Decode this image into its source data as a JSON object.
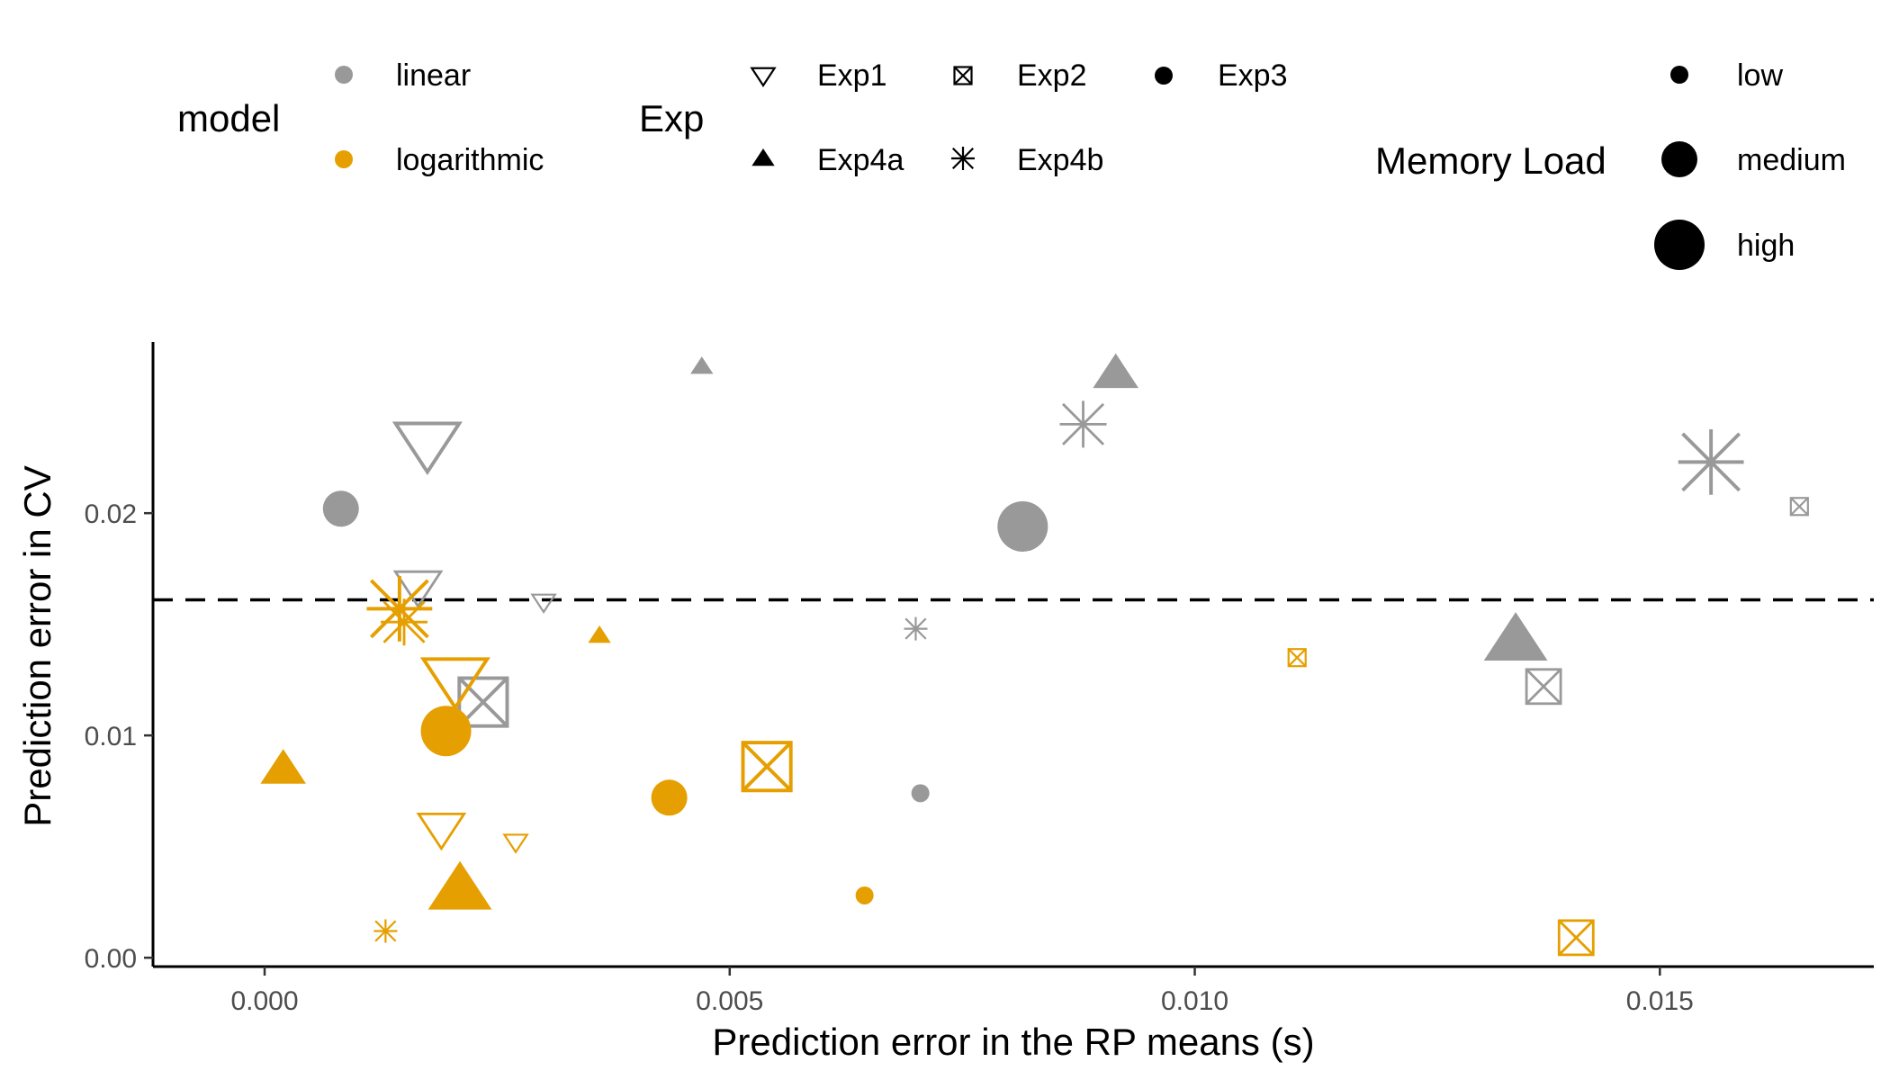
{
  "chart_data": {
    "type": "scatter",
    "xlabel": "Prediction error in the RP means (s)",
    "ylabel": "Prediction error in CV",
    "xlim": [
      -0.0012,
      0.0173
    ],
    "ylim": [
      -0.0004,
      0.0277
    ],
    "x_ticks": [
      "0.000",
      "0.005",
      "0.010",
      "0.015"
    ],
    "y_ticks": [
      "0.00",
      "0.01",
      "0.02"
    ],
    "reference_line": {
      "y": 0.0161,
      "style": "dashed"
    },
    "legends": {
      "model": {
        "title": "model",
        "items": [
          {
            "label": "linear",
            "color": "#999999"
          },
          {
            "label": "logarithmic",
            "color": "#E69F00"
          }
        ]
      },
      "exp": {
        "title": "Exp",
        "items": [
          {
            "label": "Exp1",
            "shape": "triangle-down-open"
          },
          {
            "label": "Exp2",
            "shape": "square-x-open"
          },
          {
            "label": "Exp3",
            "shape": "circle"
          },
          {
            "label": "Exp4a",
            "shape": "triangle-up"
          },
          {
            "label": "Exp4b",
            "shape": "asterisk"
          }
        ]
      },
      "memory_load": {
        "title": "Memory Load",
        "items": [
          {
            "label": "low"
          },
          {
            "label": "medium"
          },
          {
            "label": "high"
          }
        ]
      }
    },
    "series": [
      {
        "name": "linear",
        "color": "#999999",
        "points": [
          {
            "x": 0.00082,
            "y": 0.0202,
            "exp": "Exp3",
            "load": "medium"
          },
          {
            "x": 0.00815,
            "y": 0.0194,
            "exp": "Exp3",
            "load": "high"
          },
          {
            "x": 0.00705,
            "y": 0.0074,
            "exp": "Exp3",
            "load": "low"
          },
          {
            "x": 0.00175,
            "y": 0.0231,
            "exp": "Exp1",
            "load": "high"
          },
          {
            "x": 0.00165,
            "y": 0.0167,
            "exp": "Exp1",
            "load": "medium"
          },
          {
            "x": 0.003,
            "y": 0.016,
            "exp": "Exp1",
            "load": "low"
          },
          {
            "x": 0.0047,
            "y": 0.0266,
            "exp": "Exp4a",
            "load": "low"
          },
          {
            "x": 0.00915,
            "y": 0.0263,
            "exp": "Exp4a",
            "load": "medium"
          },
          {
            "x": 0.01345,
            "y": 0.0143,
            "exp": "Exp4a",
            "load": "high"
          },
          {
            "x": 0.0088,
            "y": 0.024,
            "exp": "Exp4b",
            "load": "medium"
          },
          {
            "x": 0.01555,
            "y": 0.0223,
            "exp": "Exp4b",
            "load": "high"
          },
          {
            "x": 0.007,
            "y": 0.0148,
            "exp": "Exp4b",
            "load": "low"
          },
          {
            "x": 0.00235,
            "y": 0.0115,
            "exp": "Exp2",
            "load": "high"
          },
          {
            "x": 0.01375,
            "y": 0.0122,
            "exp": "Exp2",
            "load": "medium"
          },
          {
            "x": 0.0165,
            "y": 0.0203,
            "exp": "Exp2",
            "load": "low"
          }
        ]
      },
      {
        "name": "logarithmic",
        "color": "#E69F00",
        "points": [
          {
            "x": 0.00195,
            "y": 0.0102,
            "exp": "Exp3",
            "load": "high"
          },
          {
            "x": 0.00435,
            "y": 0.0072,
            "exp": "Exp3",
            "load": "medium"
          },
          {
            "x": 0.00645,
            "y": 0.0028,
            "exp": "Exp3",
            "load": "low"
          },
          {
            "x": 0.00205,
            "y": 0.0125,
            "exp": "Exp1",
            "load": "high"
          },
          {
            "x": 0.0019,
            "y": 0.0058,
            "exp": "Exp1",
            "load": "medium"
          },
          {
            "x": 0.0027,
            "y": 0.0052,
            "exp": "Exp1",
            "load": "low"
          },
          {
            "x": 0.0002,
            "y": 0.0085,
            "exp": "Exp4a",
            "load": "medium"
          },
          {
            "x": 0.0021,
            "y": 0.0031,
            "exp": "Exp4a",
            "load": "high"
          },
          {
            "x": 0.0036,
            "y": 0.0145,
            "exp": "Exp4a",
            "load": "low"
          },
          {
            "x": 0.00145,
            "y": 0.0157,
            "exp": "Exp4b",
            "load": "high"
          },
          {
            "x": 0.0015,
            "y": 0.0151,
            "exp": "Exp4b",
            "load": "medium"
          },
          {
            "x": 0.0013,
            "y": 0.0012,
            "exp": "Exp4b",
            "load": "low"
          },
          {
            "x": 0.0054,
            "y": 0.0086,
            "exp": "Exp2",
            "load": "high"
          },
          {
            "x": 0.0111,
            "y": 0.0135,
            "exp": "Exp2",
            "load": "low"
          },
          {
            "x": 0.0141,
            "y": 0.0009,
            "exp": "Exp2",
            "load": "medium"
          }
        ]
      }
    ]
  }
}
